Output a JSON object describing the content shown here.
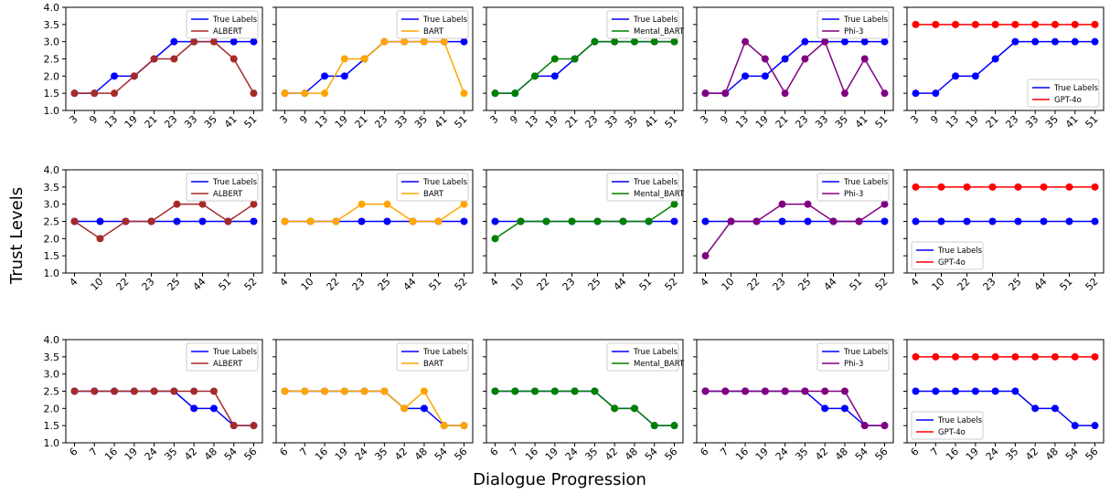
{
  "figure": {
    "ylabel": "Trust Levels",
    "xlabel": "Dialogue Progression"
  },
  "colors": {
    "True Labels": "#0000ff",
    "ALBERT": "#a52a2a",
    "BART": "#ffa500",
    "Mental_BART": "#008000",
    "Phi-3": "#800080",
    "GPT-4o": "#ff0000"
  },
  "chart_data": [
    {
      "type": "line",
      "row": 0,
      "col": 0,
      "categories": [
        "3",
        "9",
        "13",
        "19",
        "21",
        "23",
        "33",
        "35",
        "41",
        "51"
      ],
      "ylim": [
        1.0,
        4.0
      ],
      "yticks": [
        "1.0",
        "1.5",
        "2.0",
        "2.5",
        "3.0",
        "3.5",
        "4.0"
      ],
      "legend": "top-right",
      "series": [
        {
          "name": "True Labels",
          "values": [
            1.5,
            1.5,
            2.0,
            2.0,
            2.5,
            3.0,
            3.0,
            3.0,
            3.0,
            3.0
          ]
        },
        {
          "name": "ALBERT",
          "values": [
            1.5,
            1.5,
            1.5,
            2.0,
            2.5,
            2.5,
            3.0,
            3.0,
            2.5,
            1.5
          ]
        }
      ]
    },
    {
      "type": "line",
      "row": 0,
      "col": 1,
      "categories": [
        "3",
        "9",
        "13",
        "19",
        "21",
        "23",
        "33",
        "35",
        "41",
        "51"
      ],
      "ylim": [
        1.0,
        4.0
      ],
      "legend": "top-right",
      "series": [
        {
          "name": "True Labels",
          "values": [
            1.5,
            1.5,
            2.0,
            2.0,
            2.5,
            3.0,
            3.0,
            3.0,
            3.0,
            3.0
          ]
        },
        {
          "name": "BART",
          "values": [
            1.5,
            1.5,
            1.5,
            2.5,
            2.5,
            3.0,
            3.0,
            3.0,
            3.0,
            1.5
          ]
        }
      ]
    },
    {
      "type": "line",
      "row": 0,
      "col": 2,
      "categories": [
        "3",
        "9",
        "13",
        "19",
        "21",
        "23",
        "33",
        "35",
        "41",
        "51"
      ],
      "ylim": [
        1.0,
        4.0
      ],
      "legend": "top-right",
      "series": [
        {
          "name": "True Labels",
          "values": [
            1.5,
            1.5,
            2.0,
            2.0,
            2.5,
            3.0,
            3.0,
            3.0,
            3.0,
            3.0
          ]
        },
        {
          "name": "Mental_BART",
          "values": [
            1.5,
            1.5,
            2.0,
            2.5,
            2.5,
            3.0,
            3.0,
            3.0,
            3.0,
            3.0
          ]
        }
      ]
    },
    {
      "type": "line",
      "row": 0,
      "col": 3,
      "categories": [
        "3",
        "9",
        "13",
        "19",
        "21",
        "23",
        "33",
        "35",
        "41",
        "51"
      ],
      "ylim": [
        1.0,
        4.0
      ],
      "legend": "top-right",
      "series": [
        {
          "name": "True Labels",
          "values": [
            1.5,
            1.5,
            2.0,
            2.0,
            2.5,
            3.0,
            3.0,
            3.0,
            3.0,
            3.0
          ]
        },
        {
          "name": "Phi-3",
          "values": [
            1.5,
            1.5,
            3.0,
            2.5,
            1.5,
            2.5,
            3.0,
            1.5,
            2.5,
            1.5
          ]
        }
      ]
    },
    {
      "type": "line",
      "row": 0,
      "col": 4,
      "categories": [
        "3",
        "9",
        "13",
        "19",
        "21",
        "23",
        "33",
        "35",
        "41",
        "51"
      ],
      "ylim": [
        1.0,
        4.0
      ],
      "legend": "bottom-right",
      "series": [
        {
          "name": "True Labels",
          "values": [
            1.5,
            1.5,
            2.0,
            2.0,
            2.5,
            3.0,
            3.0,
            3.0,
            3.0,
            3.0
          ]
        },
        {
          "name": "GPT-4o",
          "values": [
            3.5,
            3.5,
            3.5,
            3.5,
            3.5,
            3.5,
            3.5,
            3.5,
            3.5,
            3.5
          ]
        }
      ]
    },
    {
      "type": "line",
      "row": 1,
      "col": 0,
      "categories": [
        "4",
        "10",
        "22",
        "23",
        "25",
        "44",
        "51",
        "52"
      ],
      "ylim": [
        1.0,
        4.0
      ],
      "yticks": [
        "1.0",
        "1.5",
        "2.0",
        "2.5",
        "3.0",
        "3.5",
        "4.0"
      ],
      "legend": "top-right",
      "series": [
        {
          "name": "True Labels",
          "values": [
            2.5,
            2.5,
            2.5,
            2.5,
            2.5,
            2.5,
            2.5,
            2.5
          ]
        },
        {
          "name": "ALBERT",
          "values": [
            2.5,
            2.0,
            2.5,
            2.5,
            3.0,
            3.0,
            2.5,
            3.0
          ]
        }
      ]
    },
    {
      "type": "line",
      "row": 1,
      "col": 1,
      "categories": [
        "4",
        "10",
        "22",
        "23",
        "25",
        "44",
        "51",
        "52"
      ],
      "ylim": [
        1.0,
        4.0
      ],
      "legend": "top-right",
      "series": [
        {
          "name": "True Labels",
          "values": [
            2.5,
            2.5,
            2.5,
            2.5,
            2.5,
            2.5,
            2.5,
            2.5
          ]
        },
        {
          "name": "BART",
          "values": [
            2.5,
            2.5,
            2.5,
            3.0,
            3.0,
            2.5,
            2.5,
            3.0
          ]
        }
      ]
    },
    {
      "type": "line",
      "row": 1,
      "col": 2,
      "categories": [
        "4",
        "10",
        "22",
        "23",
        "25",
        "44",
        "51",
        "52"
      ],
      "ylim": [
        1.0,
        4.0
      ],
      "legend": "top-right",
      "series": [
        {
          "name": "True Labels",
          "values": [
            2.5,
            2.5,
            2.5,
            2.5,
            2.5,
            2.5,
            2.5,
            2.5
          ]
        },
        {
          "name": "Mental_BART",
          "values": [
            2.0,
            2.5,
            2.5,
            2.5,
            2.5,
            2.5,
            2.5,
            3.0
          ]
        }
      ]
    },
    {
      "type": "line",
      "row": 1,
      "col": 3,
      "categories": [
        "4",
        "10",
        "22",
        "23",
        "25",
        "44",
        "51",
        "52"
      ],
      "ylim": [
        1.0,
        4.0
      ],
      "legend": "top-right",
      "series": [
        {
          "name": "True Labels",
          "values": [
            2.5,
            2.5,
            2.5,
            2.5,
            2.5,
            2.5,
            2.5,
            2.5
          ]
        },
        {
          "name": "Phi-3",
          "values": [
            1.5,
            2.5,
            2.5,
            3.0,
            3.0,
            2.5,
            2.5,
            3.0
          ]
        }
      ]
    },
    {
      "type": "line",
      "row": 1,
      "col": 4,
      "categories": [
        "4",
        "10",
        "22",
        "23",
        "25",
        "44",
        "51",
        "52"
      ],
      "ylim": [
        1.0,
        4.0
      ],
      "legend": "bottom-left",
      "series": [
        {
          "name": "True Labels",
          "values": [
            2.5,
            2.5,
            2.5,
            2.5,
            2.5,
            2.5,
            2.5,
            2.5
          ]
        },
        {
          "name": "GPT-4o",
          "values": [
            3.5,
            3.5,
            3.5,
            3.5,
            3.5,
            3.5,
            3.5,
            3.5
          ]
        }
      ]
    },
    {
      "type": "line",
      "row": 2,
      "col": 0,
      "categories": [
        "6",
        "7",
        "16",
        "19",
        "24",
        "35",
        "42",
        "48",
        "54",
        "56"
      ],
      "ylim": [
        1.0,
        4.0
      ],
      "yticks": [
        "1.0",
        "1.5",
        "2.0",
        "2.5",
        "3.0",
        "3.5",
        "4.0"
      ],
      "legend": "top-right",
      "series": [
        {
          "name": "True Labels",
          "values": [
            2.5,
            2.5,
            2.5,
            2.5,
            2.5,
            2.5,
            2.0,
            2.0,
            1.5,
            1.5
          ]
        },
        {
          "name": "ALBERT",
          "values": [
            2.5,
            2.5,
            2.5,
            2.5,
            2.5,
            2.5,
            2.5,
            2.5,
            1.5,
            1.5
          ]
        }
      ]
    },
    {
      "type": "line",
      "row": 2,
      "col": 1,
      "categories": [
        "6",
        "7",
        "16",
        "19",
        "24",
        "35",
        "42",
        "48",
        "54",
        "56"
      ],
      "ylim": [
        1.0,
        4.0
      ],
      "legend": "top-right",
      "series": [
        {
          "name": "True Labels",
          "values": [
            2.5,
            2.5,
            2.5,
            2.5,
            2.5,
            2.5,
            2.0,
            2.0,
            1.5,
            1.5
          ]
        },
        {
          "name": "BART",
          "values": [
            2.5,
            2.5,
            2.5,
            2.5,
            2.5,
            2.5,
            2.0,
            2.5,
            1.5,
            1.5
          ]
        }
      ]
    },
    {
      "type": "line",
      "row": 2,
      "col": 2,
      "categories": [
        "6",
        "7",
        "16",
        "19",
        "24",
        "35",
        "42",
        "48",
        "54",
        "56"
      ],
      "ylim": [
        1.0,
        4.0
      ],
      "legend": "top-right",
      "series": [
        {
          "name": "True Labels",
          "values": [
            2.5,
            2.5,
            2.5,
            2.5,
            2.5,
            2.5,
            2.0,
            2.0,
            1.5,
            1.5
          ]
        },
        {
          "name": "Mental_BART",
          "values": [
            2.5,
            2.5,
            2.5,
            2.5,
            2.5,
            2.5,
            2.0,
            2.0,
            1.5,
            1.5
          ]
        }
      ]
    },
    {
      "type": "line",
      "row": 2,
      "col": 3,
      "categories": [
        "6",
        "7",
        "16",
        "19",
        "24",
        "35",
        "42",
        "48",
        "54",
        "56"
      ],
      "ylim": [
        1.0,
        4.0
      ],
      "legend": "top-right",
      "series": [
        {
          "name": "True Labels",
          "values": [
            2.5,
            2.5,
            2.5,
            2.5,
            2.5,
            2.5,
            2.0,
            2.0,
            1.5,
            1.5
          ]
        },
        {
          "name": "Phi-3",
          "values": [
            2.5,
            2.5,
            2.5,
            2.5,
            2.5,
            2.5,
            2.5,
            2.5,
            1.5,
            1.5
          ]
        }
      ]
    },
    {
      "type": "line",
      "row": 2,
      "col": 4,
      "categories": [
        "6",
        "7",
        "16",
        "19",
        "24",
        "35",
        "42",
        "48",
        "54",
        "56"
      ],
      "ylim": [
        1.0,
        4.0
      ],
      "legend": "bottom-left",
      "series": [
        {
          "name": "True Labels",
          "values": [
            2.5,
            2.5,
            2.5,
            2.5,
            2.5,
            2.5,
            2.0,
            2.0,
            1.5,
            1.5
          ]
        },
        {
          "name": "GPT-4o",
          "values": [
            3.5,
            3.5,
            3.5,
            3.5,
            3.5,
            3.5,
            3.5,
            3.5,
            3.5,
            3.5
          ]
        }
      ]
    }
  ]
}
